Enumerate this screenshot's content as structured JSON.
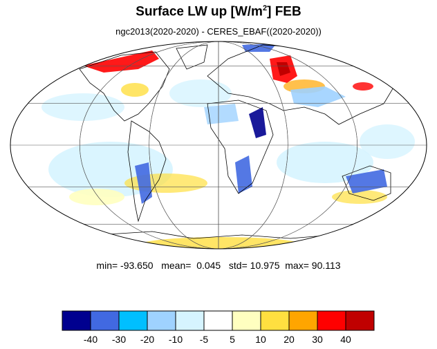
{
  "title": {
    "main": "Surface LW up [W/m",
    "superscript": "2",
    "suffix": "]  FEB"
  },
  "subtitle": "ngc2013(2020-2020) - CERES_EBAF((2020-2020))",
  "stats": {
    "min_label": "min=",
    "min": "-93.650",
    "mean_label": "mean=",
    "mean": "0.045",
    "std_label": "std=",
    "std": "10.975",
    "max_label": "max=",
    "max": "90.113"
  },
  "map": {
    "projection": "mollweide",
    "central_longitude": 0,
    "grid_latitudes": [
      -60,
      -30,
      0,
      30,
      60
    ],
    "grid_longitudes": [
      -120,
      -60,
      0,
      60,
      120
    ],
    "grid_color": "#555555",
    "coast_color": "#000000"
  },
  "colorbar": {
    "colors": [
      "#00008f",
      "#4169e1",
      "#00bfff",
      "#9fd2ff",
      "#d6f4ff",
      "#ffffff",
      "#ffffc0",
      "#ffdf40",
      "#ffa500",
      "#ff0000",
      "#c00000"
    ],
    "labels": [
      "-40",
      "-30",
      "-20",
      "-10",
      "-5",
      "5",
      "10",
      "20",
      "30",
      "40"
    ]
  }
}
